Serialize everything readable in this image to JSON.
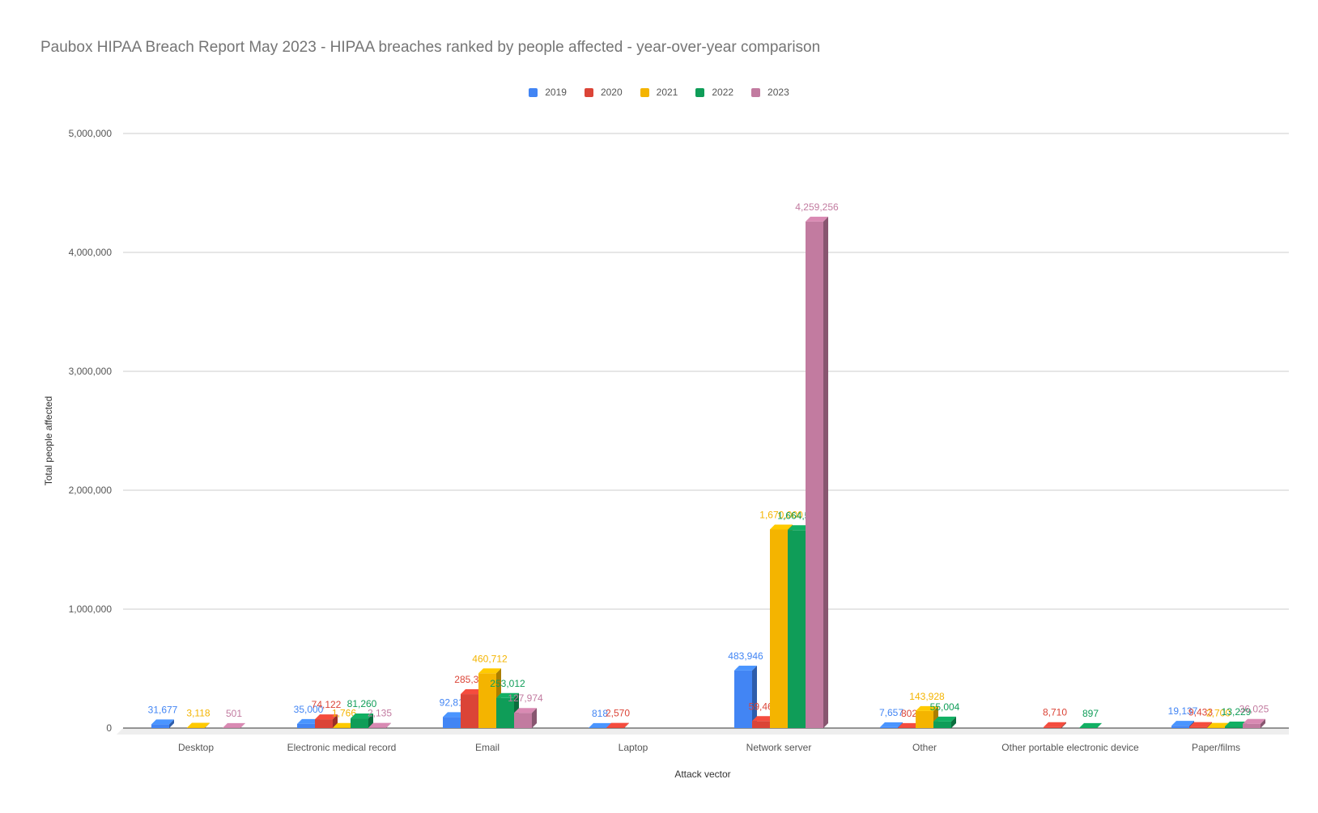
{
  "chart_data": {
    "type": "bar",
    "title": "Paubox HIPAA Breach Report May 2023 - HIPAA breaches ranked by people affected - year-over-year comparison",
    "xlabel": "Attack vector",
    "ylabel": "Total people affected",
    "ylim": [
      0,
      5000000
    ],
    "yticks": [
      "0",
      "1,000,000",
      "2,000,000",
      "3,000,000",
      "4,000,000",
      "5,000,000"
    ],
    "grid": true,
    "legend_position": "top",
    "categories": [
      "Desktop",
      "Electronic medical record",
      "Email",
      "Laptop",
      "Network server",
      "Other",
      "Other portable electronic device",
      "Paper/films"
    ],
    "series": [
      {
        "name": "2019",
        "color": "#4285f4",
        "values": [
          31677,
          35000,
          92816,
          818,
          483946,
          7657,
          null,
          19137
        ],
        "labels": [
          "31,677",
          "35,000",
          "92,816",
          "818",
          "483,946",
          "7,657",
          "",
          "19,137"
        ]
      },
      {
        "name": "2020",
        "color": "#db4437",
        "values": [
          null,
          74122,
          285327,
          2570,
          59467,
          802,
          8710,
          9433
        ],
        "labels": [
          "",
          "74,122",
          "285,327",
          "2,570",
          "59,467",
          "802",
          "8,710",
          "9,433"
        ]
      },
      {
        "name": "2021",
        "color": "#f4b400",
        "values": [
          3118,
          1766,
          460712,
          null,
          1670000,
          143928,
          null,
          2700
        ],
        "labels": [
          "3,118",
          "1,766",
          "460,712",
          "",
          "1,670,000",
          "143,928",
          "",
          "2,700"
        ]
      },
      {
        "name": "2022",
        "color": "#0f9d58",
        "values": [
          null,
          81260,
          253012,
          null,
          1664560,
          55004,
          897,
          13229
        ],
        "labels": [
          "",
          "81,260",
          "253,012",
          "",
          "1,664,560",
          "55,004",
          "897",
          "13,229"
        ]
      },
      {
        "name": "2023",
        "color": "#c27ba0",
        "values": [
          501,
          2135,
          127974,
          null,
          4259256,
          null,
          null,
          36025
        ],
        "labels": [
          "501",
          "2,135",
          "127,974",
          "",
          "4,259,256",
          "",
          "",
          "36,025"
        ]
      }
    ]
  }
}
